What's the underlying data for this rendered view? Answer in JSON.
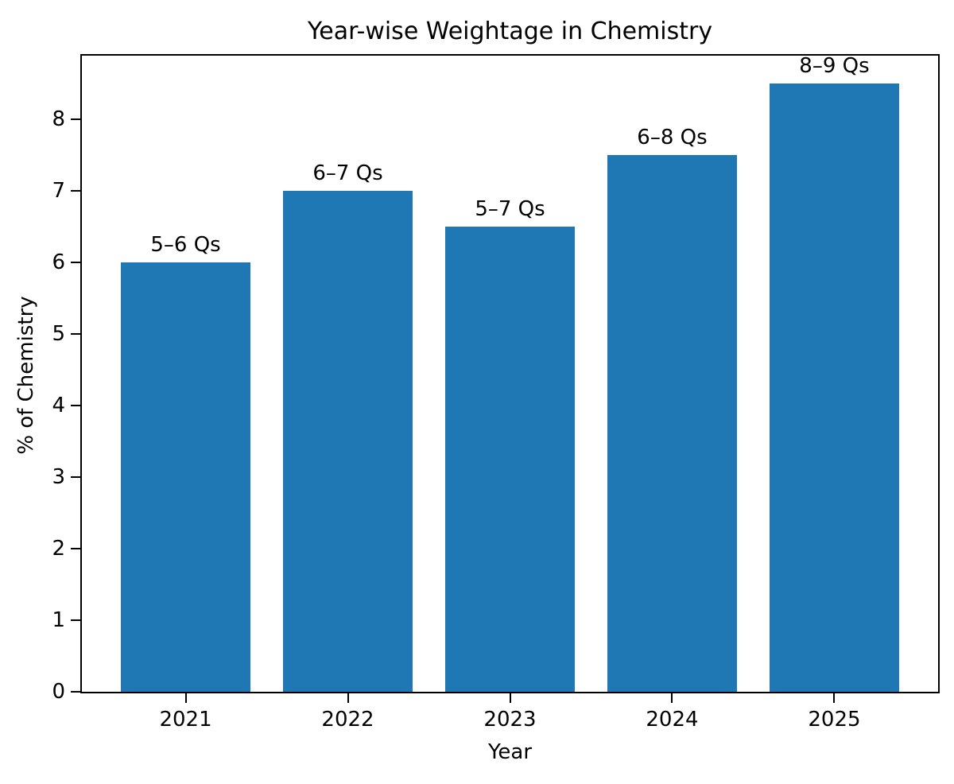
{
  "chart_data": {
    "type": "bar",
    "title": "Year-wise Weightage in Chemistry",
    "xlabel": "Year",
    "ylabel": "% of Chemistry",
    "categories": [
      "2021",
      "2022",
      "2023",
      "2024",
      "2025"
    ],
    "values": [
      6.0,
      7.0,
      6.5,
      7.5,
      8.5
    ],
    "bar_labels": [
      "5–6 Qs",
      "6–7 Qs",
      "5–7 Qs",
      "6–8 Qs",
      "8–9 Qs"
    ],
    "yticks": [
      0,
      1,
      2,
      3,
      4,
      5,
      6,
      7,
      8
    ],
    "ylim": [
      0,
      8.89
    ],
    "grid": false,
    "legend": null,
    "bar_color": "#1f77b4",
    "text_color": "#000000",
    "spine_color": "#000000",
    "background_color": "#ffffff"
  }
}
